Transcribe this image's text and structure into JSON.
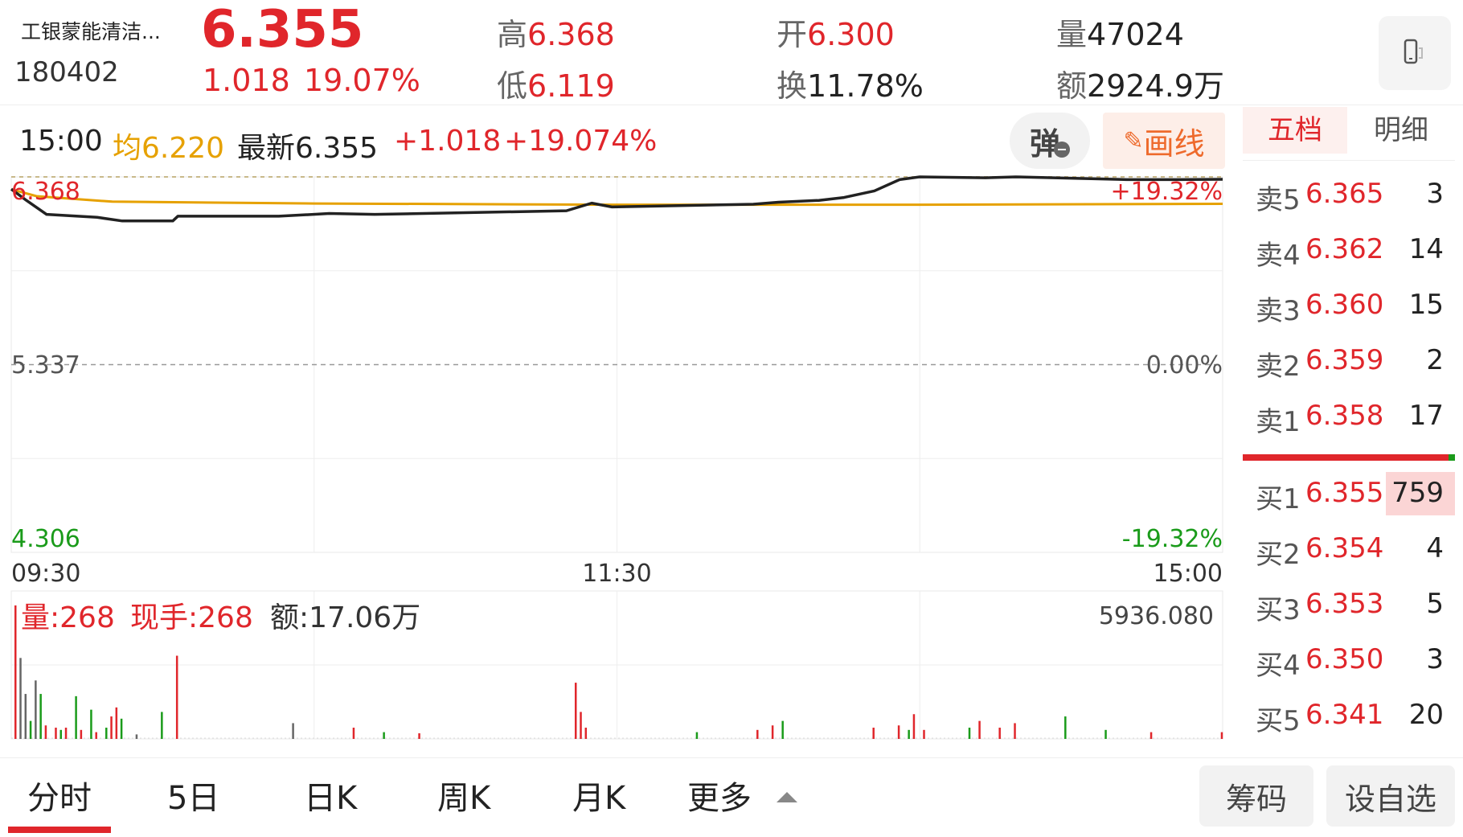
{
  "header": {
    "name": "工银蒙能清洁...",
    "code": "180402",
    "price": "6.355",
    "change": "1.018",
    "change_pct": "19.07%",
    "high_label": "高",
    "high": "6.368",
    "low_label": "低",
    "low": "6.119",
    "open_label": "开",
    "open": "6.300",
    "turnover_label": "换",
    "turnover": "11.78%",
    "volume_label": "量",
    "volume": "47024",
    "amount_label": "额",
    "amount": "2924.9万"
  },
  "infobar": {
    "time": "15:00",
    "avg_label": "均",
    "avg": "6.220",
    "latest_label": "最新",
    "latest": "6.355",
    "chg": "+1.018",
    "chg_pct": "+19.074%",
    "popup_label": "弹",
    "draw_label": "画线"
  },
  "chart_data": {
    "type": "line",
    "price_axis": {
      "max": "6.368",
      "mid": "5.337",
      "min": "4.306",
      "max_pct": "+19.32%",
      "mid_pct": "0.00%",
      "min_pct": "-19.32%"
    },
    "ylim": [
      4.306,
      6.368
    ],
    "x_ticks": [
      "09:30",
      "11:30",
      "15:00"
    ],
    "minutes": [
      0,
      3,
      7,
      17,
      22,
      32,
      33,
      53,
      63,
      72,
      91,
      110,
      115,
      119,
      147,
      152,
      160,
      165,
      171,
      176,
      180,
      193,
      199,
      221,
      231,
      240
    ],
    "price": [
      6.301,
      6.239,
      6.162,
      6.146,
      6.126,
      6.126,
      6.152,
      6.152,
      6.167,
      6.162,
      6.172,
      6.182,
      6.224,
      6.203,
      6.218,
      6.229,
      6.239,
      6.255,
      6.291,
      6.353,
      6.368,
      6.363,
      6.368,
      6.353,
      6.353,
      6.355
    ],
    "avg_minutes": [
      0,
      5,
      20,
      60,
      120,
      180,
      240
    ],
    "avg": [
      6.3,
      6.262,
      6.232,
      6.222,
      6.215,
      6.215,
      6.22
    ],
    "volume_panel": {
      "vol_label": "量:268",
      "hand_label": "现手:268",
      "amount_label": "额:17.06万",
      "max": "5936.080",
      "ylim": [
        0,
        5936.08
      ]
    },
    "volume_bars": [
      {
        "m": 0,
        "v": 5936,
        "c": "red"
      },
      {
        "m": 1,
        "v": 3600,
        "c": "gray"
      },
      {
        "m": 2,
        "v": 2000,
        "c": "gray"
      },
      {
        "m": 3,
        "v": 800,
        "c": "green"
      },
      {
        "m": 4,
        "v": 2600,
        "c": "gray"
      },
      {
        "m": 5,
        "v": 2000,
        "c": "green"
      },
      {
        "m": 6,
        "v": 600,
        "c": "red"
      },
      {
        "m": 8,
        "v": 500,
        "c": "red"
      },
      {
        "m": 9,
        "v": 400,
        "c": "green"
      },
      {
        "m": 10,
        "v": 500,
        "c": "red"
      },
      {
        "m": 12,
        "v": 1900,
        "c": "green"
      },
      {
        "m": 13,
        "v": 400,
        "c": "red"
      },
      {
        "m": 15,
        "v": 1300,
        "c": "green"
      },
      {
        "m": 16,
        "v": 300,
        "c": "red"
      },
      {
        "m": 18,
        "v": 500,
        "c": "green"
      },
      {
        "m": 19,
        "v": 1000,
        "c": "red"
      },
      {
        "m": 20,
        "v": 1400,
        "c": "red"
      },
      {
        "m": 21,
        "v": 900,
        "c": "green"
      },
      {
        "m": 24,
        "v": 200,
        "c": "gray"
      },
      {
        "m": 29,
        "v": 1200,
        "c": "green"
      },
      {
        "m": 32,
        "v": 3700,
        "c": "red"
      },
      {
        "m": 55,
        "v": 700,
        "c": "gray"
      },
      {
        "m": 67,
        "v": 500,
        "c": "red"
      },
      {
        "m": 73,
        "v": 300,
        "c": "green"
      },
      {
        "m": 80,
        "v": 250,
        "c": "red"
      },
      {
        "m": 111,
        "v": 2500,
        "c": "red"
      },
      {
        "m": 112,
        "v": 1200,
        "c": "red"
      },
      {
        "m": 113,
        "v": 500,
        "c": "red"
      },
      {
        "m": 135,
        "v": 300,
        "c": "green"
      },
      {
        "m": 147,
        "v": 400,
        "c": "red"
      },
      {
        "m": 150,
        "v": 600,
        "c": "red"
      },
      {
        "m": 152,
        "v": 800,
        "c": "green"
      },
      {
        "m": 170,
        "v": 500,
        "c": "red"
      },
      {
        "m": 175,
        "v": 600,
        "c": "red"
      },
      {
        "m": 177,
        "v": 400,
        "c": "green"
      },
      {
        "m": 178,
        "v": 1100,
        "c": "red"
      },
      {
        "m": 180,
        "v": 400,
        "c": "red"
      },
      {
        "m": 189,
        "v": 500,
        "c": "green"
      },
      {
        "m": 191,
        "v": 800,
        "c": "red"
      },
      {
        "m": 195,
        "v": 500,
        "c": "red"
      },
      {
        "m": 198,
        "v": 700,
        "c": "red"
      },
      {
        "m": 208,
        "v": 1000,
        "c": "green"
      },
      {
        "m": 216,
        "v": 400,
        "c": "green"
      },
      {
        "m": 225,
        "v": 300,
        "c": "red"
      },
      {
        "m": 239,
        "v": 300,
        "c": "red"
      }
    ]
  },
  "orderbook": {
    "tabs": [
      "五档",
      "明细"
    ],
    "asks": [
      {
        "label": "卖5",
        "price": "6.365",
        "vol": "3"
      },
      {
        "label": "卖4",
        "price": "6.362",
        "vol": "14"
      },
      {
        "label": "卖3",
        "price": "6.360",
        "vol": "15"
      },
      {
        "label": "卖2",
        "price": "6.359",
        "vol": "2"
      },
      {
        "label": "卖1",
        "price": "6.358",
        "vol": "17"
      }
    ],
    "bids": [
      {
        "label": "买1",
        "price": "6.355",
        "vol": "759"
      },
      {
        "label": "买2",
        "price": "6.354",
        "vol": "4"
      },
      {
        "label": "买3",
        "price": "6.353",
        "vol": "5"
      },
      {
        "label": "买4",
        "price": "6.350",
        "vol": "3"
      },
      {
        "label": "买5",
        "price": "6.341",
        "vol": "20"
      }
    ],
    "buy_ratio": 0.97
  },
  "bottom_tabs": {
    "items": [
      "分时",
      "5日",
      "日K",
      "周K",
      "月K",
      "更多"
    ],
    "active": "分时",
    "chips_label": "筹码",
    "watchlist_label": "设自选"
  },
  "colors": {
    "up": "#e0262b",
    "down": "#1a9b1a",
    "avg": "#e6a100",
    "accent": "#e0262b"
  }
}
